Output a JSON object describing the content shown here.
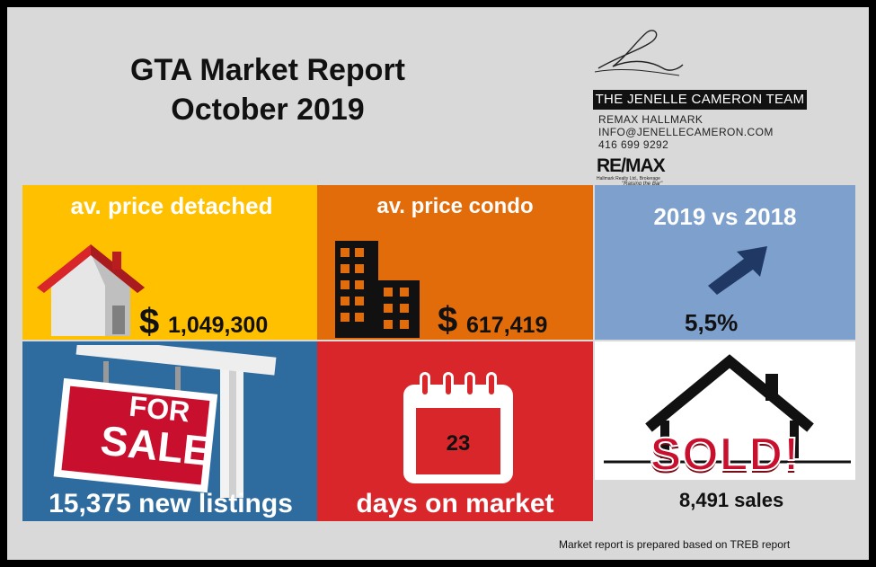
{
  "header": {
    "title_line1": "GTA Market Report",
    "title_line2": "October 2019"
  },
  "brand": {
    "team_name": "THE JENELLE CAMERON TEAM",
    "brokerage": "REMAX HALLMARK",
    "email": "INFO@JENELLECAMERON.COM",
    "phone": "416 699 9292",
    "logo_text": "RE/MAX",
    "logo_subtext": "Hallmark Realty Ltd., Brokerage",
    "logo_tagline": "\"Raising the Bar\""
  },
  "tiles": {
    "detached": {
      "label": "av. price detached",
      "currency": "$",
      "value": "1,049,300",
      "icon": "house-icon",
      "color": "#ffc000"
    },
    "condo": {
      "label": "av. price condo",
      "currency": "$",
      "value": "617,419",
      "icon": "building-icon",
      "color": "#e26b0a"
    },
    "yoy": {
      "label": "2019 vs 2018",
      "value": "5,5%",
      "icon": "up-arrow-icon",
      "color": "#7ea0cd"
    },
    "listings": {
      "sign_line1": "FOR",
      "sign_line2": "SALE",
      "caption": "15,375 new listings",
      "icon": "for-sale-sign-icon",
      "color": "#2e6b9e"
    },
    "days": {
      "value": "23",
      "caption": "days on market",
      "icon": "calendar-icon",
      "color": "#d9262b"
    },
    "sold": {
      "stamp": "SOLD!",
      "caption": "8,491 sales",
      "icon": "sold-house-icon",
      "color": "#ffffff"
    }
  },
  "footnote": "Market report  is prepared based on TREB  report"
}
